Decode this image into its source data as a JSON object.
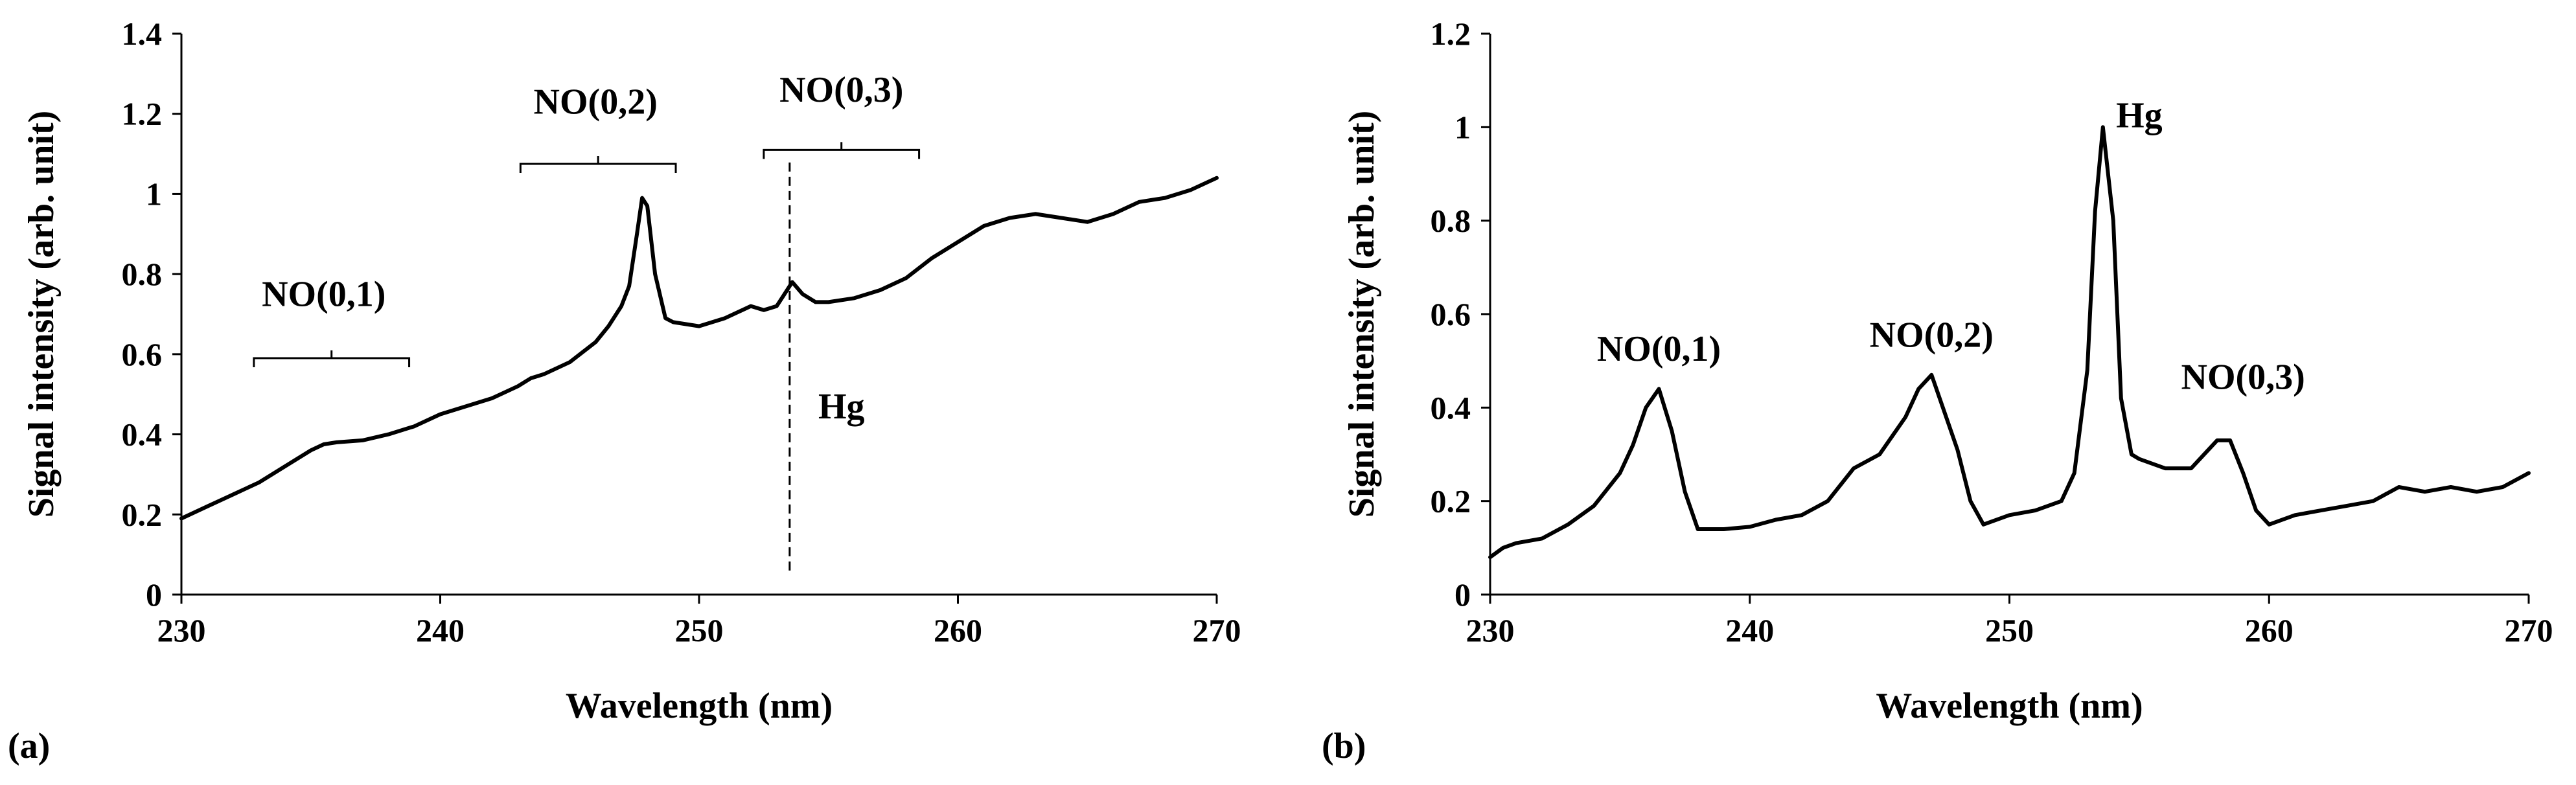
{
  "chart_data": [
    {
      "type": "line",
      "panel_label": "(a)",
      "xlabel": "Wavelength (nm)",
      "ylabel": "Signal intensity (arb. unit)",
      "xlim": [
        230,
        270
      ],
      "ylim": [
        0,
        1.4
      ],
      "xticks": [
        230,
        240,
        250,
        260,
        270
      ],
      "yticks": [
        0,
        0.2,
        0.4,
        0.6,
        0.8,
        1,
        1.2,
        1.4
      ],
      "xtick_labels": [
        "230",
        "240",
        "250",
        "260",
        "270"
      ],
      "ytick_labels": [
        "0",
        "0.2",
        "0.4",
        "0.6",
        "0.8",
        "1",
        "1.2",
        "1.4"
      ],
      "grid": false,
      "series": [
        {
          "x": [
            230,
            231,
            232,
            233,
            234,
            235,
            235.5,
            236,
            237,
            238,
            238.5,
            239,
            240,
            241,
            242,
            243,
            243.5,
            244,
            245,
            246,
            246.5,
            247,
            247.3,
            247.6,
            247.8,
            248,
            248.3,
            248.7,
            249,
            250,
            251,
            252,
            252.5,
            253,
            253.3,
            253.6,
            254,
            254.5,
            255,
            256,
            257,
            258,
            259,
            260,
            261,
            262,
            263,
            264,
            265,
            266,
            267,
            268,
            269,
            270
          ],
          "y": [
            0.19,
            0.22,
            0.25,
            0.28,
            0.32,
            0.36,
            0.375,
            0.38,
            0.385,
            0.4,
            0.41,
            0.42,
            0.45,
            0.47,
            0.49,
            0.52,
            0.54,
            0.55,
            0.58,
            0.63,
            0.67,
            0.72,
            0.77,
            0.9,
            0.99,
            0.97,
            0.8,
            0.69,
            0.68,
            0.67,
            0.69,
            0.72,
            0.71,
            0.72,
            0.75,
            0.78,
            0.75,
            0.73,
            0.73,
            0.74,
            0.76,
            0.79,
            0.84,
            0.88,
            0.92,
            0.94,
            0.95,
            0.94,
            0.93,
            0.95,
            0.98,
            0.99,
            1.01,
            1.04
          ]
        }
      ],
      "annotations": [
        {
          "text": "NO(0,1)",
          "bracket_x": [
            232.8,
            238.8
          ],
          "bracket_y": 0.59,
          "text_x": 235.5,
          "text_y": 0.72
        },
        {
          "text": "NO(0,2)",
          "bracket_x": [
            243.1,
            249.1
          ],
          "bracket_y": 1.075,
          "text_x": 246,
          "text_y": 1.2
        },
        {
          "text": "NO(0,3)",
          "bracket_x": [
            252.5,
            258.5
          ],
          "bracket_y": 1.11,
          "text_x": 255.5,
          "text_y": 1.23
        },
        {
          "text": "Hg",
          "line_x": 253.5,
          "line_y": [
            0.06,
            1.09
          ],
          "text_x": 255.5,
          "text_y": 0.44
        }
      ]
    },
    {
      "type": "line",
      "panel_label": "(b)",
      "xlabel": "Wavelength (nm)",
      "ylabel": "Signal intensity (arb. unit)",
      "xlim": [
        230,
        270
      ],
      "ylim": [
        0,
        1.2
      ],
      "xticks": [
        230,
        240,
        250,
        260,
        270
      ],
      "yticks": [
        0,
        0.2,
        0.4,
        0.6,
        0.8,
        1,
        1.2
      ],
      "xtick_labels": [
        "230",
        "240",
        "250",
        "260",
        "270"
      ],
      "ytick_labels": [
        "0",
        "0.2",
        "0.4",
        "0.6",
        "0.8",
        "1",
        "1.2"
      ],
      "grid": false,
      "series": [
        {
          "x": [
            230,
            230.5,
            231,
            232,
            233,
            234,
            235,
            235.5,
            236,
            236.5,
            237,
            237.5,
            238,
            239,
            240,
            241,
            242,
            243,
            244,
            245,
            246,
            246.5,
            247,
            247.5,
            248,
            248.5,
            249,
            250,
            251,
            252,
            252.5,
            253,
            253.3,
            253.6,
            254,
            254.3,
            254.7,
            255,
            256,
            257,
            258,
            258.5,
            259,
            259.5,
            260,
            261,
            262,
            263,
            264,
            265,
            266,
            267,
            268,
            269,
            270
          ],
          "y": [
            0.08,
            0.1,
            0.11,
            0.12,
            0.15,
            0.19,
            0.26,
            0.32,
            0.4,
            0.44,
            0.35,
            0.22,
            0.14,
            0.14,
            0.145,
            0.16,
            0.17,
            0.2,
            0.27,
            0.3,
            0.38,
            0.44,
            0.47,
            0.39,
            0.31,
            0.2,
            0.15,
            0.17,
            0.18,
            0.2,
            0.26,
            0.48,
            0.82,
            1.0,
            0.8,
            0.42,
            0.3,
            0.29,
            0.27,
            0.27,
            0.33,
            0.33,
            0.26,
            0.18,
            0.15,
            0.17,
            0.18,
            0.19,
            0.2,
            0.23,
            0.22,
            0.23,
            0.22,
            0.23,
            0.26
          ]
        }
      ],
      "annotations": [
        {
          "text": "NO(0,1)",
          "text_x": 236.5,
          "text_y": 0.5
        },
        {
          "text": "NO(0,2)",
          "text_x": 247,
          "text_y": 0.53
        },
        {
          "text": "Hg",
          "text_x": 255,
          "text_y": 1.0
        },
        {
          "text": "NO(0,3)",
          "text_x": 259,
          "text_y": 0.44
        }
      ]
    }
  ]
}
